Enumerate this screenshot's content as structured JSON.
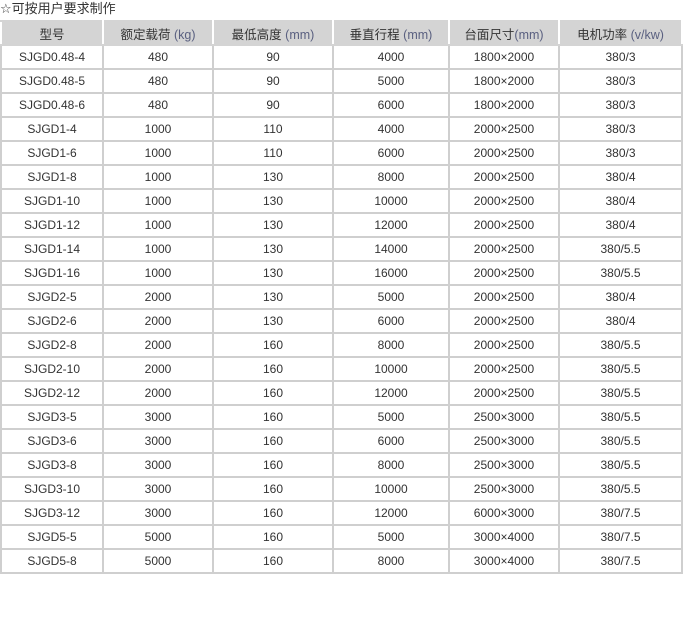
{
  "note": "☆可按用户要求制作",
  "columns": [
    {
      "label": "型号",
      "unit": ""
    },
    {
      "label": "额定载荷 ",
      "unit": "(kg)"
    },
    {
      "label": "最低高度 ",
      "unit": "(mm)"
    },
    {
      "label": "垂直行程 ",
      "unit": "(mm)"
    },
    {
      "label": "台面尺寸",
      "unit": "(mm)"
    },
    {
      "label": "电机功率 ",
      "unit": "(v/kw)"
    }
  ],
  "rows": [
    [
      "SJGD0.48-4",
      "480",
      "90",
      "4000",
      "1800×2000",
      "380/3"
    ],
    [
      "SJGD0.48-5",
      "480",
      "90",
      "5000",
      "1800×2000",
      "380/3"
    ],
    [
      "SJGD0.48-6",
      "480",
      "90",
      "6000",
      "1800×2000",
      "380/3"
    ],
    [
      "SJGD1-4",
      "1000",
      "110",
      "4000",
      "2000×2500",
      "380/3"
    ],
    [
      "SJGD1-6",
      "1000",
      "110",
      "6000",
      "2000×2500",
      "380/3"
    ],
    [
      "SJGD1-8",
      "1000",
      "130",
      "8000",
      "2000×2500",
      "380/4"
    ],
    [
      "SJGD1-10",
      "1000",
      "130",
      "10000",
      "2000×2500",
      "380/4"
    ],
    [
      "SJGD1-12",
      "1000",
      "130",
      "12000",
      "2000×2500",
      "380/4"
    ],
    [
      "SJGD1-14",
      "1000",
      "130",
      "14000",
      "2000×2500",
      "380/5.5"
    ],
    [
      "SJGD1-16",
      "1000",
      "130",
      "16000",
      "2000×2500",
      "380/5.5"
    ],
    [
      "SJGD2-5",
      "2000",
      "130",
      "5000",
      "2000×2500",
      "380/4"
    ],
    [
      "SJGD2-6",
      "2000",
      "130",
      "6000",
      "2000×2500",
      "380/4"
    ],
    [
      "SJGD2-8",
      "2000",
      "160",
      "8000",
      "2000×2500",
      "380/5.5"
    ],
    [
      "SJGD2-10",
      "2000",
      "160",
      "10000",
      "2000×2500",
      "380/5.5"
    ],
    [
      "SJGD2-12",
      "2000",
      "160",
      "12000",
      "2000×2500",
      "380/5.5"
    ],
    [
      "SJGD3-5",
      "3000",
      "160",
      "5000",
      "2500×3000",
      "380/5.5"
    ],
    [
      "SJGD3-6",
      "3000",
      "160",
      "6000",
      "2500×3000",
      "380/5.5"
    ],
    [
      "SJGD3-8",
      "3000",
      "160",
      "8000",
      "2500×3000",
      "380/5.5"
    ],
    [
      "SJGD3-10",
      "3000",
      "160",
      "10000",
      "2500×3000",
      "380/5.5"
    ],
    [
      "SJGD3-12",
      "3000",
      "160",
      "12000",
      "6000×3000",
      "380/7.5"
    ],
    [
      "SJGD5-5",
      "5000",
      "160",
      "5000",
      "3000×4000",
      "380/7.5"
    ],
    [
      "SJGD5-8",
      "5000",
      "160",
      "8000",
      "3000×4000",
      "380/7.5"
    ]
  ]
}
